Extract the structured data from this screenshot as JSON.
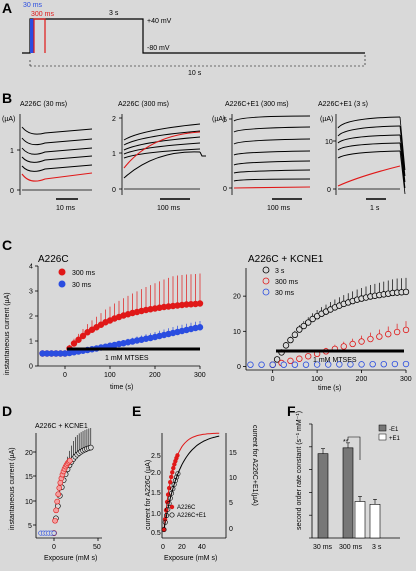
{
  "panels": {
    "A": {
      "letter": "A",
      "pulse_30": "30 ms",
      "pulse_300": "300 ms",
      "pulse_3s": "3 s",
      "v_hold_high": "+40 mV",
      "v_hold_low": "-80 mV",
      "interval": "10 s",
      "colors": {
        "30ms": "#2a4de0",
        "300ms": "#e01818",
        "3s": "#000000"
      }
    },
    "B": {
      "letter": "B",
      "ylabel": "(µA)",
      "traces": [
        {
          "title": "A226C (30 ms)",
          "yticks": [
            "1",
            "0"
          ],
          "scalebar": "10 ms"
        },
        {
          "title": "A226C (300 ms)",
          "yticks": [
            "2",
            "1",
            "0"
          ],
          "scalebar": "100 ms"
        },
        {
          "title": "A226C+E1 (300 ms)",
          "yticks": [
            "5",
            "0"
          ],
          "scalebar": "100 ms"
        },
        {
          "title": "A226C+E1 (3 s)",
          "yticks": [
            "10",
            "0"
          ],
          "scalebar": "1 s"
        }
      ]
    },
    "C": {
      "letter": "C",
      "ylabel": "instantaneous current (µA)",
      "left": {
        "title": "A226C",
        "legend": [
          "300 ms",
          "30 ms"
        ],
        "bar": "1 mM MTSES",
        "xlabel": "time (s)"
      },
      "right": {
        "title": "A226C + KCNE1",
        "legend": [
          "3 s",
          "300 ms",
          "30 ms"
        ],
        "bar": "1 mM MTSES",
        "xlabel": "time (s)"
      }
    },
    "D": {
      "letter": "D",
      "title": "A226C + KCNE1",
      "ylabel": "instantaneous current (µA)",
      "xlabel": "Exposure (mM s)"
    },
    "E": {
      "letter": "E",
      "ylabel_left": "current for A226C (µA)",
      "ylabel_right": "current for A226C+E1(µA)",
      "xlabel": "Exposure (mM s)",
      "legend": [
        "A226C",
        "A226C+E1"
      ]
    },
    "F": {
      "letter": "F",
      "ylabel": "second order rate constant (s⁻¹ mM⁻¹)",
      "legend": [
        "-E1",
        "+E1"
      ],
      "sig": "**",
      "categories": [
        "30 ms",
        "300 ms",
        "3 s"
      ]
    }
  },
  "chart_data": [
    {
      "type": "scatter",
      "title": "A226C",
      "xlabel": "time (s)",
      "ylabel": "instantaneous current (µA)",
      "xlim": [
        -60,
        300
      ],
      "ylim": [
        0,
        4
      ],
      "series": [
        {
          "name": "300 ms",
          "color": "#e01818",
          "x": [
            -50,
            -40,
            -30,
            -20,
            -10,
            0,
            10,
            20,
            30,
            40,
            50,
            60,
            70,
            80,
            90,
            100,
            110,
            120,
            130,
            140,
            150,
            160,
            170,
            180,
            190,
            200,
            210,
            220,
            230,
            240,
            250,
            260,
            270,
            280,
            290,
            300
          ],
          "y": [
            0.5,
            0.5,
            0.5,
            0.5,
            0.5,
            0.5,
            0.7,
            0.9,
            1.05,
            1.2,
            1.35,
            1.45,
            1.55,
            1.65,
            1.75,
            1.82,
            1.9,
            1.96,
            2.02,
            2.07,
            2.12,
            2.16,
            2.2,
            2.24,
            2.27,
            2.3,
            2.33,
            2.36,
            2.38,
            2.4,
            2.42,
            2.44,
            2.46,
            2.47,
            2.48,
            2.5
          ]
        },
        {
          "name": "30 ms",
          "color": "#2a4de0",
          "x": [
            -50,
            -40,
            -30,
            -20,
            -10,
            0,
            10,
            20,
            30,
            40,
            50,
            60,
            70,
            80,
            90,
            100,
            110,
            120,
            130,
            140,
            150,
            160,
            170,
            180,
            190,
            200,
            210,
            220,
            230,
            240,
            250,
            260,
            270,
            280,
            290,
            300
          ],
          "y": [
            0.5,
            0.5,
            0.5,
            0.5,
            0.5,
            0.5,
            0.52,
            0.55,
            0.58,
            0.61,
            0.64,
            0.67,
            0.7,
            0.74,
            0.77,
            0.81,
            0.84,
            0.88,
            0.91,
            0.95,
            0.98,
            1.02,
            1.05,
            1.09,
            1.12,
            1.16,
            1.2,
            1.24,
            1.28,
            1.32,
            1.36,
            1.4,
            1.44,
            1.48,
            1.52,
            1.55
          ]
        }
      ]
    },
    {
      "type": "scatter",
      "title": "A226C + KCNE1",
      "xlabel": "time (s)",
      "ylabel": "instantaneous current (µA)",
      "xlim": [
        -60,
        300
      ],
      "ylim": [
        -1,
        28
      ],
      "series": [
        {
          "name": "3 s",
          "color": "#000000",
          "x": [
            0,
            10,
            20,
            30,
            40,
            50,
            60,
            70,
            80,
            90,
            100,
            110,
            120,
            130,
            140,
            150,
            160,
            170,
            180,
            190,
            200,
            210,
            220,
            230,
            240,
            250,
            260,
            270,
            280,
            290,
            300
          ],
          "y": [
            0.5,
            2,
            4,
            6,
            7.5,
            9,
            10.5,
            11.5,
            12.5,
            13.5,
            14.3,
            15,
            15.6,
            16.2,
            16.8,
            17.3,
            17.8,
            18.2,
            18.6,
            19,
            19.3,
            19.6,
            19.9,
            20.1,
            20.3,
            20.5,
            20.7,
            20.9,
            21,
            21.1,
            21.2
          ]
        },
        {
          "name": "300 ms",
          "color": "#e01818",
          "x": [
            0,
            20,
            40,
            60,
            80,
            100,
            120,
            140,
            160,
            180,
            200,
            220,
            240,
            260,
            280,
            300
          ],
          "y": [
            0.5,
            1,
            1.6,
            2.2,
            2.9,
            3.6,
            4.3,
            5,
            5.7,
            6.4,
            7.1,
            7.8,
            8.5,
            9.2,
            9.8,
            10.4
          ]
        },
        {
          "name": "30 ms",
          "color": "#2a4de0",
          "x": [
            -50,
            -25,
            0,
            25,
            50,
            75,
            100,
            125,
            150,
            175,
            200,
            225,
            250,
            275,
            300
          ],
          "y": [
            0.5,
            0.5,
            0.5,
            0.5,
            0.5,
            0.5,
            0.55,
            0.55,
            0.6,
            0.6,
            0.6,
            0.65,
            0.65,
            0.7,
            0.7
          ]
        }
      ]
    },
    {
      "type": "bar",
      "title": "",
      "ylabel": "second order rate constant (s⁻¹ mM⁻¹)",
      "categories": [
        "30 ms",
        "300 ms",
        "3 s"
      ],
      "series": [
        {
          "name": "-E1",
          "values": [
            50,
            90,
            null
          ]
        },
        {
          "name": "+E1",
          "values": [
            null,
            0.4,
            0.3
          ]
        }
      ]
    }
  ]
}
